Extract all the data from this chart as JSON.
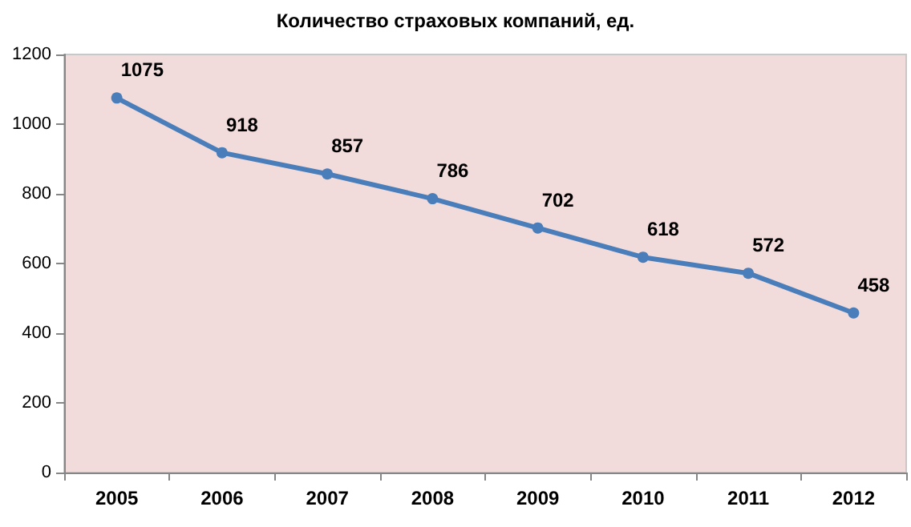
{
  "chart_data": {
    "type": "line",
    "title": "Количество страховых компаний, ед.",
    "categories": [
      "2005",
      "2006",
      "2007",
      "2008",
      "2009",
      "2010",
      "2011",
      "2012"
    ],
    "series": [
      {
        "color": "#4a7ebb",
        "values": [
          1075,
          918,
          857,
          786,
          702,
          618,
          572,
          458
        ]
      }
    ],
    "ylim": [
      0,
      1200
    ],
    "yticks": [
      0,
      200,
      400,
      600,
      800,
      1000,
      1200
    ],
    "grid": false,
    "data_labels": true,
    "marker": "circle",
    "line_style": "solid"
  }
}
